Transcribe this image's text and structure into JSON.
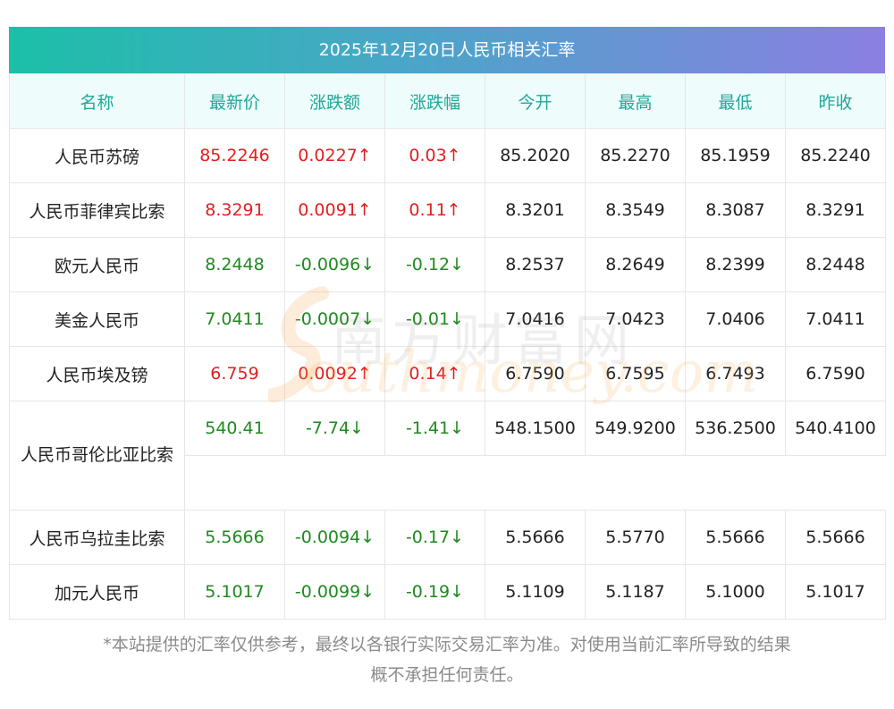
{
  "title": "2025年12月20日人民币相关汇率",
  "colors": {
    "up": "#e02020",
    "down": "#1f8a1f",
    "header_text": "#1fa89a"
  },
  "headers": [
    "名称",
    "最新价",
    "涨跌额",
    "涨跌幅",
    "今开",
    "最高",
    "最低",
    "昨收"
  ],
  "rows": [
    {
      "name": "人民币苏磅",
      "latest": "85.2246",
      "change": "0.0227↑",
      "change_pct": "0.03↑",
      "open": "85.2020",
      "high": "85.2270",
      "low": "85.1959",
      "prev_close": "85.2240",
      "dir": "up"
    },
    {
      "name": "人民币菲律宾比索",
      "latest": "8.3291",
      "change": "0.0091↑",
      "change_pct": "0.11↑",
      "open": "8.3201",
      "high": "8.3549",
      "low": "8.3087",
      "prev_close": "8.3291",
      "dir": "up"
    },
    {
      "name": "欧元人民币",
      "latest": "8.2448",
      "change": "-0.0096↓",
      "change_pct": "-0.12↓",
      "open": "8.2537",
      "high": "8.2649",
      "low": "8.2399",
      "prev_close": "8.2448",
      "dir": "down"
    },
    {
      "name": "美金人民币",
      "latest": "7.0411",
      "change": "-0.0007↓",
      "change_pct": "-0.01↓",
      "open": "7.0416",
      "high": "7.0423",
      "low": "7.0406",
      "prev_close": "7.0411",
      "dir": "down"
    },
    {
      "name": "人民币埃及镑",
      "latest": "6.759",
      "change": "0.0092↑",
      "change_pct": "0.14↑",
      "open": "6.7590",
      "high": "6.7595",
      "low": "6.7493",
      "prev_close": "6.7590",
      "dir": "up"
    },
    {
      "name": "人民币哥伦比亚比索",
      "latest": "540.41",
      "change": "-7.74↓",
      "change_pct": "-1.41↓",
      "open": "548.1500",
      "high": "549.9200",
      "low": "536.2500",
      "prev_close": "540.4100",
      "dir": "down"
    },
    {
      "name": "人民币乌拉圭比索",
      "latest": "5.5666",
      "change": "-0.0094↓",
      "change_pct": "-0.17↓",
      "open": "5.5666",
      "high": "5.5770",
      "low": "5.5666",
      "prev_close": "5.5666",
      "dir": "down"
    },
    {
      "name": "加元人民币",
      "latest": "5.1017",
      "change": "-0.0099↓",
      "change_pct": "-0.19↓",
      "open": "5.1109",
      "high": "5.1187",
      "low": "5.1000",
      "prev_close": "5.1017",
      "dir": "down"
    }
  ],
  "watermark": {
    "cn": "南方财富网",
    "en": "outhmoney.com"
  },
  "disclaimer": {
    "line1": "*本站提供的汇率仅供参考，最终以各银行实际交易汇率为准。对使用当前汇率所导致的结果",
    "line2": "概不承担任何责任。"
  }
}
